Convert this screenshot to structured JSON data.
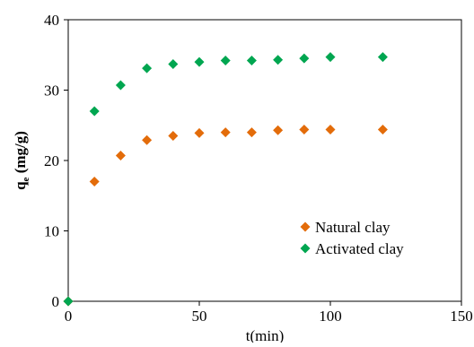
{
  "chart_data": {
    "type": "scatter",
    "xlabel": "t(min)",
    "ylabel": {
      "main": "q",
      "sub": "e",
      "rest": " (mg/g)"
    },
    "xlim": [
      0,
      150
    ],
    "ylim": [
      0,
      40
    ],
    "x_ticks": [
      "0",
      "50",
      "100",
      "150"
    ],
    "y_ticks": [
      "0",
      "10",
      "20",
      "30",
      "40"
    ],
    "grid": false,
    "legend_position": "lower-right",
    "marker": "diamond",
    "series": [
      {
        "name": "Natural clay",
        "color": "#e36c0a",
        "x": [
          0,
          10,
          20,
          30,
          40,
          50,
          60,
          70,
          80,
          90,
          100,
          120
        ],
        "y": [
          0,
          17.0,
          20.7,
          22.9,
          23.5,
          23.9,
          24.0,
          24.0,
          24.3,
          24.4,
          24.4,
          24.4
        ]
      },
      {
        "name": "Activated clay",
        "color": "#00a650",
        "x": [
          0,
          10,
          20,
          30,
          40,
          50,
          60,
          70,
          80,
          90,
          100,
          120
        ],
        "y": [
          0,
          27.0,
          30.7,
          33.1,
          33.7,
          34.0,
          34.2,
          34.2,
          34.3,
          34.5,
          34.7,
          34.7
        ]
      }
    ]
  }
}
